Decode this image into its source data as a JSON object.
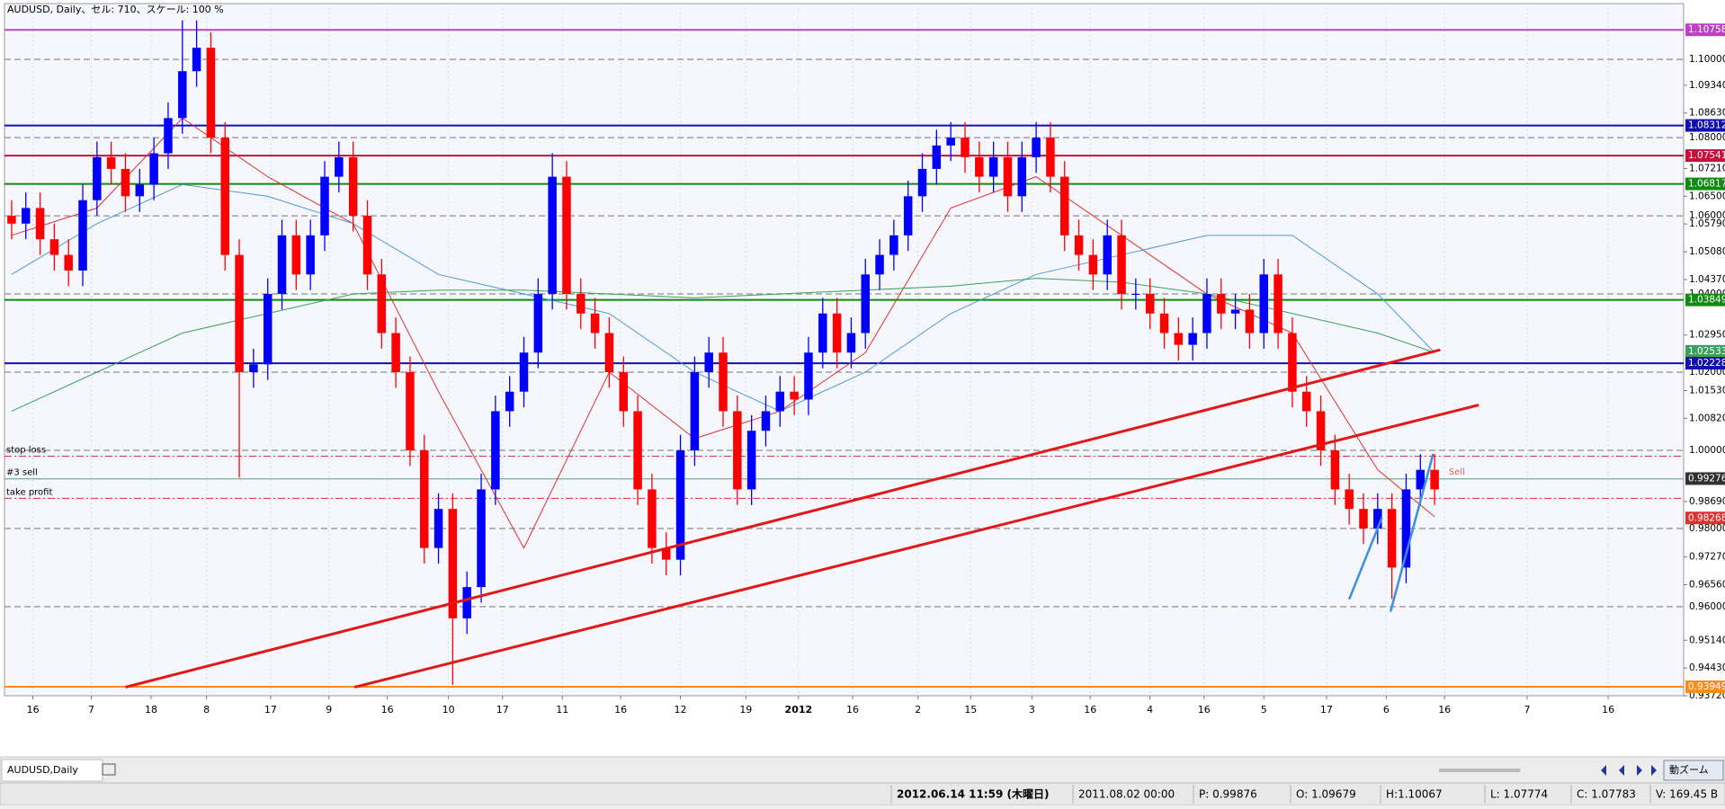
{
  "chart_data": {
    "type": "candlestick",
    "title": "AUDUSD, Daily、セル: 710、スケール: 100 %",
    "xlim": [
      -0.5,
      117.5
    ],
    "ylim": [
      0.9372,
      1.1143
    ],
    "grid": true,
    "up_color": "#0000ff",
    "down_color": "#ff0000",
    "open": [
      1.06,
      1.058,
      1.062,
      1.054,
      1.05,
      1.046,
      1.064,
      1.075,
      1.072,
      1.065,
      1.068,
      1.076,
      1.085,
      1.097,
      1.103,
      1.08,
      1.05,
      1.02,
      1.022,
      1.04,
      1.055,
      1.045,
      1.055,
      1.07,
      1.075,
      1.06,
      1.045,
      1.03,
      1.02,
      1.0,
      0.975,
      0.985,
      0.957,
      0.965,
      0.99,
      1.01,
      1.015,
      1.025,
      1.04,
      1.07,
      1.04,
      1.035,
      1.03,
      1.02,
      1.01,
      0.99,
      0.975,
      0.972,
      1.0,
      1.02,
      1.025,
      1.01,
      0.99,
      1.005,
      1.01,
      1.015,
      1.013,
      1.025,
      1.035,
      1.025,
      1.03,
      1.045,
      1.05,
      1.055,
      1.065,
      1.072,
      1.078,
      1.08,
      1.075,
      1.07,
      1.075,
      1.065,
      1.075,
      1.08,
      1.07,
      1.055,
      1.05,
      1.045,
      1.055,
      1.04,
      1.04,
      1.035,
      1.03,
      1.027,
      1.03,
      1.04,
      1.035,
      1.036,
      1.03,
      1.045,
      1.03,
      1.015,
      1.01,
      1.0,
      0.99,
      0.985,
      0.98,
      0.985,
      0.97,
      0.99,
      0.995
    ],
    "high": [
      1.064,
      1.066,
      1.066,
      1.058,
      1.054,
      1.068,
      1.079,
      1.079,
      1.076,
      1.072,
      1.08,
      1.089,
      1.11,
      1.11,
      1.107,
      1.084,
      1.054,
      1.026,
      1.044,
      1.059,
      1.059,
      1.059,
      1.074,
      1.079,
      1.079,
      1.064,
      1.049,
      1.034,
      1.024,
      1.004,
      0.989,
      0.989,
      0.969,
      0.994,
      1.014,
      1.019,
      1.029,
      1.044,
      1.076,
      1.074,
      1.044,
      1.039,
      1.034,
      1.024,
      1.014,
      0.994,
      0.979,
      1.004,
      1.024,
      1.029,
      1.029,
      1.014,
      1.009,
      1.014,
      1.019,
      1.019,
      1.029,
      1.039,
      1.039,
      1.034,
      1.049,
      1.054,
      1.059,
      1.069,
      1.076,
      1.082,
      1.084,
      1.084,
      1.079,
      1.079,
      1.079,
      1.079,
      1.084,
      1.084,
      1.074,
      1.059,
      1.054,
      1.059,
      1.059,
      1.044,
      1.044,
      1.039,
      1.034,
      1.034,
      1.044,
      1.044,
      1.04,
      1.04,
      1.049,
      1.049,
      1.034,
      1.019,
      1.014,
      1.004,
      0.994,
      0.989,
      0.989,
      0.989,
      0.994,
      0.999,
      0.999
    ],
    "low": [
      1.054,
      1.054,
      1.05,
      1.046,
      1.042,
      1.042,
      1.06,
      1.068,
      1.061,
      1.061,
      1.064,
      1.072,
      1.081,
      1.093,
      1.076,
      1.046,
      0.993,
      1.016,
      1.018,
      1.036,
      1.041,
      1.041,
      1.051,
      1.066,
      1.056,
      1.041,
      1.026,
      1.016,
      0.996,
      0.971,
      0.971,
      0.94,
      0.953,
      0.961,
      0.986,
      1.006,
      1.011,
      1.021,
      1.036,
      1.036,
      1.031,
      1.026,
      1.016,
      1.006,
      0.986,
      0.971,
      0.968,
      0.968,
      0.996,
      1.016,
      1.006,
      0.986,
      0.986,
      1.001,
      1.006,
      1.009,
      1.009,
      1.021,
      1.021,
      1.021,
      1.026,
      1.041,
      1.046,
      1.051,
      1.061,
      1.068,
      1.074,
      1.071,
      1.066,
      1.066,
      1.061,
      1.061,
      1.071,
      1.066,
      1.051,
      1.046,
      1.041,
      1.041,
      1.036,
      1.036,
      1.031,
      1.026,
      1.023,
      1.023,
      1.026,
      1.031,
      1.031,
      1.026,
      1.026,
      1.026,
      1.011,
      1.006,
      0.996,
      0.986,
      0.981,
      0.976,
      0.976,
      0.962,
      0.966,
      0.986,
      0.986
    ],
    "close": [
      1.058,
      1.062,
      1.054,
      1.05,
      1.046,
      1.064,
      1.075,
      1.072,
      1.065,
      1.068,
      1.076,
      1.085,
      1.097,
      1.103,
      1.08,
      1.05,
      1.02,
      1.022,
      1.04,
      1.055,
      1.045,
      1.055,
      1.07,
      1.075,
      1.06,
      1.045,
      1.03,
      1.02,
      1.0,
      0.975,
      0.985,
      0.957,
      0.965,
      0.99,
      1.01,
      1.015,
      1.025,
      1.04,
      1.07,
      1.04,
      1.035,
      1.03,
      1.02,
      1.01,
      0.99,
      0.975,
      0.972,
      1.0,
      1.02,
      1.025,
      1.01,
      0.99,
      1.005,
      1.01,
      1.015,
      1.013,
      1.025,
      1.035,
      1.025,
      1.03,
      1.045,
      1.05,
      1.055,
      1.065,
      1.072,
      1.078,
      1.08,
      1.075,
      1.07,
      1.075,
      1.065,
      1.075,
      1.08,
      1.07,
      1.055,
      1.05,
      1.045,
      1.055,
      1.04,
      1.04,
      1.035,
      1.03,
      1.027,
      1.03,
      1.04,
      1.035,
      1.036,
      1.03,
      1.045,
      1.03,
      1.015,
      1.01,
      1.0,
      0.99,
      0.985,
      0.98,
      0.985,
      0.97,
      0.99,
      0.995,
      0.99
    ],
    "ma_x": [
      0,
      6,
      12,
      18,
      24,
      30,
      36,
      42,
      48,
      54,
      60,
      66,
      72,
      78,
      84,
      90,
      96,
      100
    ],
    "moving_averages": [
      {
        "color": "#e03030",
        "values": [
          1.055,
          1.062,
          1.085,
          1.07,
          1.058,
          1.015,
          0.975,
          1.02,
          1.003,
          1.01,
          1.025,
          1.062,
          1.07,
          1.055,
          1.04,
          1.03,
          0.995,
          0.983
        ]
      },
      {
        "color": "#4a9ad8",
        "values": [
          1.045,
          1.058,
          1.068,
          1.065,
          1.058,
          1.045,
          1.04,
          1.035,
          1.02,
          1.01,
          1.02,
          1.035,
          1.045,
          1.05,
          1.055,
          1.055,
          1.04,
          1.025
        ]
      },
      {
        "color": "#3aa060",
        "values": [
          1.01,
          1.02,
          1.03,
          1.035,
          1.04,
          1.041,
          1.041,
          1.04,
          1.039,
          1.04,
          1.041,
          1.042,
          1.044,
          1.043,
          1.04,
          1.035,
          1.03,
          1.025
        ]
      }
    ],
    "xticks": [
      {
        "value": 1.5,
        "label": "16"
      },
      {
        "value": 5.6,
        "label": "7"
      },
      {
        "value": 9.8,
        "label": "18"
      },
      {
        "value": 13.7,
        "label": "8"
      },
      {
        "value": 18.2,
        "label": "17"
      },
      {
        "value": 22.3,
        "label": "9"
      },
      {
        "value": 26.4,
        "label": "16"
      },
      {
        "value": 30.7,
        "label": "10"
      },
      {
        "value": 34.5,
        "label": "17"
      },
      {
        "value": 38.7,
        "label": "11"
      },
      {
        "value": 42.8,
        "label": "16"
      },
      {
        "value": 47.0,
        "label": "12"
      },
      {
        "value": 51.6,
        "label": "19"
      },
      {
        "value": 55.3,
        "label": "2012"
      },
      {
        "value": 59.1,
        "label": "16"
      },
      {
        "value": 63.7,
        "label": "2"
      },
      {
        "value": 67.4,
        "label": "15"
      },
      {
        "value": 71.7,
        "label": "3"
      },
      {
        "value": 75.8,
        "label": "16"
      },
      {
        "value": 80.0,
        "label": "4"
      },
      {
        "value": 83.8,
        "label": "16"
      },
      {
        "value": 88.0,
        "label": "5"
      },
      {
        "value": 92.4,
        "label": "17"
      },
      {
        "value": 96.6,
        "label": "6"
      },
      {
        "value": 100.7,
        "label": "16"
      },
      {
        "value": 106.5,
        "label": "7"
      },
      {
        "value": 112.2,
        "label": "16"
      }
    ],
    "yticks": [
      {
        "value": 1.0934,
        "label": "1.09340"
      },
      {
        "value": 1.0863,
        "label": "1.08630"
      },
      {
        "value": 1.0721,
        "label": "1.07210"
      },
      {
        "value": 1.065,
        "label": "1.06500"
      },
      {
        "value": 1.0579,
        "label": "1.05790"
      },
      {
        "value": 1.0508,
        "label": "1.05080"
      },
      {
        "value": 1.0437,
        "label": "1.04370"
      },
      {
        "value": 1.0295,
        "label": "1.02950"
      },
      {
        "value": 1.0153,
        "label": "1.01530"
      },
      {
        "value": 1.0082,
        "label": "1.00820"
      },
      {
        "value": 0.9869,
        "label": "0.98690"
      },
      {
        "value": 0.9727,
        "label": "0.97270"
      },
      {
        "value": 0.9656,
        "label": "0.96560"
      },
      {
        "value": 0.9514,
        "label": "0.95140"
      },
      {
        "value": 0.9443,
        "label": "0.94430"
      },
      {
        "value": 0.9372,
        "label": "0.93720"
      }
    ],
    "levels": [
      {
        "value": 1.1,
        "label": "1.10000",
        "color": "#a0a0a0",
        "style": "dashed",
        "boxed": false
      },
      {
        "value": 1.08,
        "label": "1.08000",
        "color": "#a0a0a0",
        "style": "dashed",
        "boxed": false
      },
      {
        "value": 1.06,
        "label": "1.06000",
        "color": "#a0a0a0",
        "style": "dashed",
        "boxed": false
      },
      {
        "value": 1.04,
        "label": "1.04000",
        "color": "#a0a0a0",
        "style": "dashed",
        "boxed": false
      },
      {
        "value": 1.02,
        "label": "1.02000",
        "color": "#a0a0a0",
        "style": "dashed",
        "boxed": false
      },
      {
        "value": 1.0,
        "label": "1.00000",
        "color": "#a0a0a0",
        "style": "dashed",
        "boxed": false
      },
      {
        "value": 0.98,
        "label": "0.98000",
        "color": "#a0a0a0",
        "style": "dashed",
        "boxed": false
      },
      {
        "value": 0.96,
        "label": "0.96000",
        "color": "#a0a0a0",
        "style": "dashed",
        "boxed": false
      },
      {
        "value": 1.10758,
        "label": "1.10758",
        "color": "#c040c8",
        "style": "solid",
        "boxed": true
      },
      {
        "value": 1.08312,
        "label": "1.08312",
        "color": "#1010b0",
        "style": "solid",
        "boxed": true
      },
      {
        "value": 1.07541,
        "label": "1.07541",
        "color": "#c8103c",
        "style": "solid",
        "boxed": true
      },
      {
        "value": 1.06817,
        "label": "1.06817",
        "color": "#108a10",
        "style": "solid",
        "boxed": true
      },
      {
        "value": 1.03849,
        "label": "1.03849",
        "color": "#108a10",
        "style": "solid",
        "boxed": true
      },
      {
        "value": 1.02533,
        "label": "1.02533",
        "color": "#3aa060",
        "style": "none",
        "boxed": true
      },
      {
        "value": 1.02228,
        "label": "1.02228",
        "color": "#1010b0",
        "style": "solid",
        "boxed": true
      },
      {
        "value": 0.99276,
        "label": "0.99276",
        "color": "#303030",
        "style": "none",
        "boxed": true
      },
      {
        "value": 0.98268,
        "label": "0.98268",
        "color": "#e03030",
        "style": "none",
        "boxed": true
      },
      {
        "value": 0.93949,
        "label": "0.93949",
        "color": "#ff8c1a",
        "style": "solid",
        "boxed": true
      }
    ],
    "orders": [
      {
        "name": "stop loss",
        "value": 0.9985,
        "color": "#e03030"
      },
      {
        "name": "#3 sell",
        "value": 0.9927,
        "color": "#5a9a7a"
      },
      {
        "name": "take profit",
        "value": 0.9877,
        "color": "#e03030"
      }
    ],
    "trend_lines": [
      {
        "color": "#e01818",
        "width": 3,
        "x": [
          8.0,
          100.4
        ],
        "y": [
          0.9394,
          1.0257
        ]
      },
      {
        "color": "#e01818",
        "width": 3,
        "x": [
          24.1,
          103.1
        ],
        "y": [
          0.9394,
          1.0116
        ]
      },
      {
        "color": "#3a8ee8",
        "width": 2.5,
        "x": [
          96.9,
          99.9
        ],
        "y": [
          0.9587,
          0.9991
        ]
      },
      {
        "color": "#3a8ee8",
        "width": 2.5,
        "x": [
          94.0,
          96.3
        ],
        "y": [
          0.9619,
          0.9828
        ]
      }
    ],
    "annotation": {
      "text": "Sell",
      "x": 101.0,
      "y": 0.9945,
      "color": "#e06060"
    }
  },
  "window": {
    "tab": "AUDUSD,Daily",
    "zoom_button": "動ズーム",
    "status_bar": [
      "2012.06.14 11:59 (木曜日)",
      "2011.08.02 00:00",
      "P: 0.99876",
      "O: 1.09679",
      "H:1.10067",
      "L: 1.07774",
      "C: 1.07783",
      "V: 169.45 B"
    ]
  }
}
